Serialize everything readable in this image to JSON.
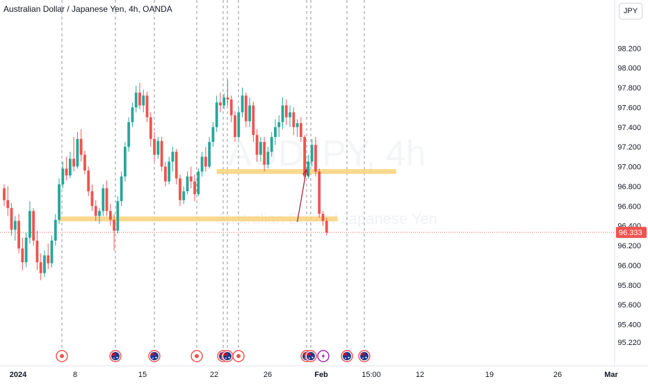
{
  "header": {
    "title": "Australian Dollar / Japanese Yen, 4h, OANDA",
    "currency": "JPY"
  },
  "watermark": {
    "symbol": "AUDJPY, 4h",
    "name": "Australian Dollar / Japanese Yen"
  },
  "price_tag": "96.333",
  "colors": {
    "up": "#26a69a",
    "down": "#ef5350",
    "zone": "#f9d27a",
    "arrow": "#a52a3a",
    "price_line": "#ef5350"
  },
  "chart_data": {
    "type": "candlestick",
    "title": "Australian Dollar / Japanese Yen, 4h, OANDA",
    "ylim": [
      95.15,
      98.35
    ],
    "y_ticks": [
      "98.200",
      "98.000",
      "97.800",
      "97.600",
      "97.400",
      "97.200",
      "97.000",
      "96.800",
      "96.600",
      "96.400",
      "96.200",
      "96.000",
      "95.800",
      "95.600",
      "95.400",
      "95.220"
    ],
    "x_ticks": [
      "2024",
      "8",
      "15",
      "22",
      "26",
      "Feb",
      "15:00",
      "12",
      "19",
      "26",
      "Mar"
    ],
    "last_price": 96.333,
    "zones": [
      {
        "from_bar": 15,
        "to_bar": 91,
        "price": 96.47
      },
      {
        "from_bar": 58,
        "to_bar": 107,
        "price": 96.95
      }
    ],
    "arrow": {
      "from_bar": 80,
      "from_price": 96.44,
      "to_bar": 82.5,
      "to_price": 96.97
    },
    "candles": [
      [
        96.78,
        96.82,
        96.6,
        96.66
      ],
      [
        96.66,
        96.8,
        96.5,
        96.58
      ],
      [
        96.58,
        96.63,
        96.3,
        96.36
      ],
      [
        96.36,
        96.5,
        96.25,
        96.45
      ],
      [
        96.45,
        96.52,
        96.12,
        96.17
      ],
      [
        96.17,
        96.28,
        95.95,
        96.03
      ],
      [
        96.03,
        96.33,
        95.98,
        96.28
      ],
      [
        96.28,
        96.65,
        96.22,
        96.55
      ],
      [
        96.55,
        96.58,
        96.2,
        96.25
      ],
      [
        96.25,
        96.35,
        95.95,
        96.03
      ],
      [
        96.03,
        96.12,
        95.85,
        95.92
      ],
      [
        95.92,
        96.15,
        95.88,
        96.1
      ],
      [
        96.1,
        96.22,
        95.96,
        96.02
      ],
      [
        96.02,
        96.3,
        95.98,
        96.25
      ],
      [
        96.25,
        96.52,
        96.2,
        96.46
      ],
      [
        96.46,
        96.88,
        96.42,
        96.82
      ],
      [
        96.82,
        97.05,
        96.78,
        96.98
      ],
      [
        96.98,
        97.1,
        96.86,
        96.91
      ],
      [
        96.91,
        97.15,
        96.88,
        97.08
      ],
      [
        97.08,
        97.3,
        96.95,
        97.0
      ],
      [
        97.0,
        97.35,
        96.98,
        97.28
      ],
      [
        97.28,
        97.38,
        97.05,
        97.12
      ],
      [
        97.12,
        97.16,
        96.92,
        96.96
      ],
      [
        96.96,
        97.0,
        96.7,
        96.75
      ],
      [
        96.75,
        96.82,
        96.55,
        96.6
      ],
      [
        96.6,
        96.66,
        96.45,
        96.5
      ],
      [
        96.5,
        96.58,
        96.42,
        96.55
      ],
      [
        96.55,
        96.82,
        96.5,
        96.78
      ],
      [
        96.78,
        96.86,
        96.5,
        96.55
      ],
      [
        96.55,
        96.62,
        96.4,
        96.46
      ],
      [
        96.46,
        96.52,
        96.15,
        96.35
      ],
      [
        96.35,
        96.7,
        96.32,
        96.65
      ],
      [
        96.65,
        96.95,
        96.6,
        96.9
      ],
      [
        96.9,
        97.25,
        96.85,
        97.2
      ],
      [
        97.2,
        97.5,
        97.15,
        97.45
      ],
      [
        97.45,
        97.65,
        97.4,
        97.6
      ],
      [
        97.6,
        97.82,
        97.55,
        97.75
      ],
      [
        97.75,
        97.85,
        97.58,
        97.62
      ],
      [
        97.62,
        97.78,
        97.55,
        97.72
      ],
      [
        97.72,
        97.76,
        97.45,
        97.5
      ],
      [
        97.5,
        97.55,
        97.2,
        97.28
      ],
      [
        97.28,
        97.35,
        97.05,
        97.12
      ],
      [
        97.12,
        97.3,
        97.08,
        97.26
      ],
      [
        97.26,
        97.3,
        96.95,
        97.0
      ],
      [
        97.0,
        97.05,
        96.8,
        96.85
      ],
      [
        96.85,
        97.1,
        96.82,
        97.05
      ],
      [
        97.05,
        97.2,
        96.95,
        97.15
      ],
      [
        97.15,
        97.18,
        96.82,
        96.88
      ],
      [
        96.88,
        96.92,
        96.6,
        96.66
      ],
      [
        96.66,
        96.8,
        96.62,
        96.75
      ],
      [
        96.75,
        96.95,
        96.72,
        96.9
      ],
      [
        96.9,
        97.0,
        96.78,
        96.85
      ],
      [
        96.85,
        96.92,
        96.65,
        96.72
      ],
      [
        96.72,
        96.98,
        96.7,
        96.95
      ],
      [
        96.95,
        97.15,
        96.9,
        97.1
      ],
      [
        97.1,
        97.2,
        96.95,
        97.0
      ],
      [
        97.0,
        97.3,
        96.98,
        97.25
      ],
      [
        97.25,
        97.45,
        97.2,
        97.4
      ],
      [
        97.4,
        97.72,
        97.35,
        97.65
      ],
      [
        97.65,
        97.75,
        97.55,
        97.62
      ],
      [
        97.62,
        97.74,
        97.58,
        97.7
      ],
      [
        97.7,
        97.88,
        97.62,
        97.68
      ],
      [
        97.68,
        97.72,
        97.45,
        97.52
      ],
      [
        97.52,
        97.56,
        97.25,
        97.3
      ],
      [
        97.3,
        97.6,
        97.28,
        97.55
      ],
      [
        97.55,
        97.8,
        97.5,
        97.72
      ],
      [
        97.72,
        97.75,
        97.4,
        97.46
      ],
      [
        97.46,
        97.7,
        97.4,
        97.62
      ],
      [
        97.62,
        97.66,
        97.25,
        97.32
      ],
      [
        97.32,
        97.38,
        97.05,
        97.12
      ],
      [
        97.12,
        97.3,
        97.05,
        97.25
      ],
      [
        97.25,
        97.3,
        96.95,
        97.02
      ],
      [
        97.02,
        97.2,
        96.98,
        97.15
      ],
      [
        97.15,
        97.35,
        97.1,
        97.3
      ],
      [
        97.3,
        97.48,
        97.22,
        97.4
      ],
      [
        97.4,
        97.52,
        97.3,
        97.45
      ],
      [
        97.45,
        97.7,
        97.38,
        97.62
      ],
      [
        97.62,
        97.68,
        97.42,
        97.5
      ],
      [
        97.5,
        97.62,
        97.4,
        97.55
      ],
      [
        97.55,
        97.6,
        97.32,
        97.4
      ],
      [
        97.4,
        97.48,
        97.3,
        97.44
      ],
      [
        97.44,
        97.5,
        97.25,
        97.3
      ],
      [
        97.3,
        97.32,
        96.85,
        96.9
      ],
      [
        96.9,
        97.12,
        96.88,
        97.05
      ],
      [
        97.05,
        97.28,
        97.0,
        97.22
      ],
      [
        97.22,
        97.3,
        96.9,
        96.95
      ],
      [
        96.95,
        96.98,
        96.48,
        96.52
      ],
      [
        96.52,
        96.55,
        96.4,
        96.45
      ],
      [
        96.45,
        96.48,
        96.3,
        96.33
      ]
    ]
  }
}
